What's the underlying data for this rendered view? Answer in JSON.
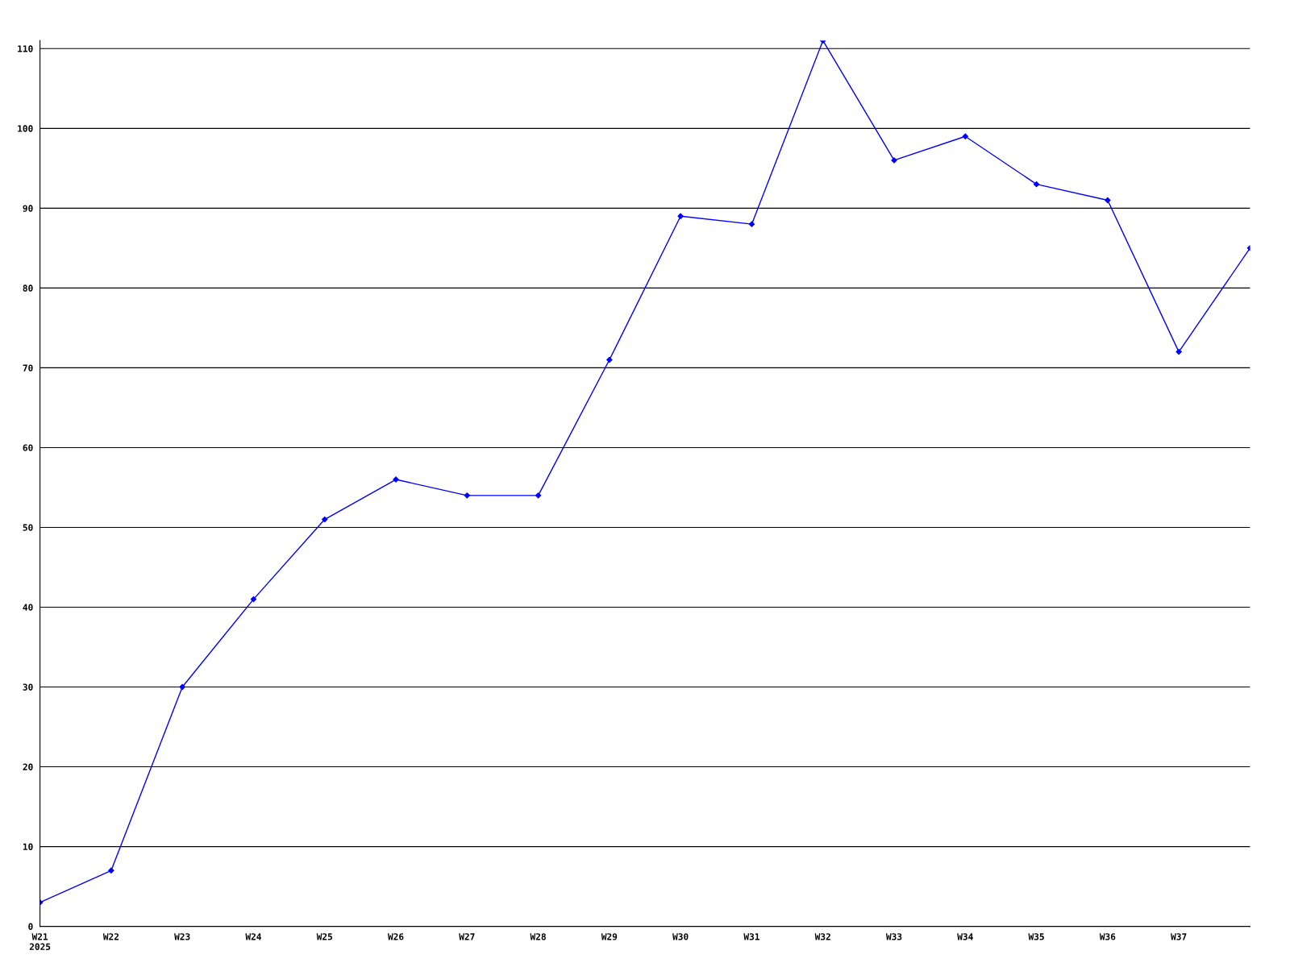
{
  "chart_data": {
    "type": "line",
    "categories": [
      "W21\n2025",
      "W22",
      "W23",
      "W24",
      "W25",
      "W26",
      "W27",
      "W28",
      "W29",
      "W30",
      "W31",
      "W32",
      "W33",
      "W34",
      "W35",
      "W36",
      "W37",
      null
    ],
    "series": [
      {
        "color": "#0000ff",
        "values": [
          3,
          7,
          30,
          41,
          51,
          56,
          54,
          54,
          71,
          89,
          88,
          111,
          96,
          99,
          93,
          91,
          72,
          85
        ]
      }
    ],
    "ylim": [
      0,
      111
    ],
    "yticks": [
      0,
      10,
      20,
      30,
      40,
      50,
      60,
      70,
      80,
      90,
      100,
      110
    ],
    "grid": "y",
    "marker": "diamond",
    "line_style": "solid"
  }
}
